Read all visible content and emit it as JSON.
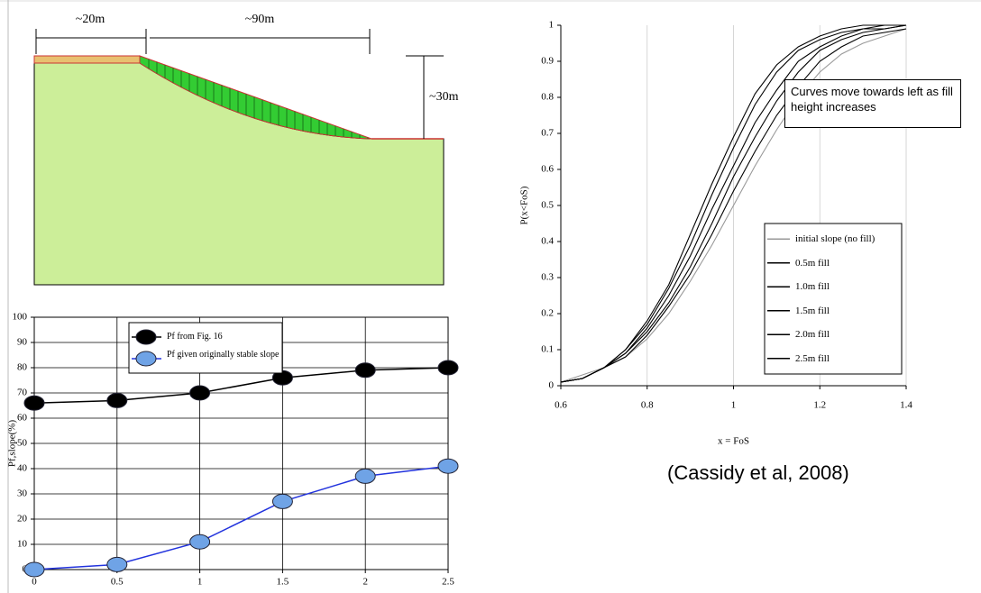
{
  "diagram": {
    "labels": [
      "~20m",
      "~90m",
      "~30m"
    ]
  },
  "citation": "(Cassidy et al, 2008)",
  "chart_data": [
    {
      "type": "line",
      "ylabel": "P(x<FoS)",
      "xlabel": "x = FoS",
      "annotation": "Curves move towards left as fill height increases",
      "x": [
        0.6,
        0.65,
        0.7,
        0.75,
        0.8,
        0.85,
        0.9,
        0.95,
        1,
        1.05,
        1.1,
        1.15,
        1.2,
        1.25,
        1.3,
        1.35,
        1.4
      ],
      "xlim": [
        0.6,
        1.4
      ],
      "xticks": [
        0.6,
        0.8,
        1,
        1.2,
        1.4
      ],
      "ylim": [
        0,
        1
      ],
      "yticks": [
        0,
        0.1,
        0.2,
        0.3,
        0.4,
        0.5,
        0.6,
        0.7,
        0.8,
        0.9,
        1
      ],
      "grid": {
        "x": true,
        "y": false
      },
      "markers": false,
      "legend": "lower right",
      "series": [
        {
          "name": "initial slope (no fill)",
          "color": "#999999",
          "values": [
            0.01,
            0.03,
            0.05,
            0.08,
            0.13,
            0.2,
            0.29,
            0.39,
            0.5,
            0.61,
            0.71,
            0.8,
            0.87,
            0.92,
            0.95,
            0.97,
            0.99
          ]
        },
        {
          "name": "0.5m fill",
          "color": "#000000",
          "values": [
            0.01,
            0.02,
            0.05,
            0.08,
            0.14,
            0.22,
            0.31,
            0.42,
            0.54,
            0.65,
            0.75,
            0.83,
            0.9,
            0.94,
            0.97,
            0.98,
            0.99
          ]
        },
        {
          "name": "1.0m fill",
          "color": "#000000",
          "values": [
            0.01,
            0.02,
            0.05,
            0.09,
            0.15,
            0.23,
            0.33,
            0.45,
            0.58,
            0.69,
            0.79,
            0.87,
            0.93,
            0.96,
            0.98,
            0.99,
            1
          ]
        },
        {
          "name": "1.5m fill",
          "color": "#000000",
          "values": [
            0.01,
            0.02,
            0.05,
            0.09,
            0.16,
            0.25,
            0.36,
            0.49,
            0.61,
            0.73,
            0.82,
            0.9,
            0.94,
            0.97,
            0.99,
            0.99,
            1
          ]
        },
        {
          "name": "2.0m fill",
          "color": "#000000",
          "values": [
            0.01,
            0.02,
            0.05,
            0.1,
            0.17,
            0.27,
            0.39,
            0.53,
            0.66,
            0.78,
            0.87,
            0.93,
            0.96,
            0.98,
            0.99,
            1,
            1
          ]
        },
        {
          "name": "2.5m fill",
          "color": "#000000",
          "values": [
            0.01,
            0.02,
            0.05,
            0.1,
            0.18,
            0.28,
            0.42,
            0.56,
            0.69,
            0.81,
            0.89,
            0.94,
            0.97,
            0.99,
            1,
            1,
            1
          ]
        }
      ]
    },
    {
      "type": "line",
      "ylabel": "Pf,slope(%)",
      "x": [
        0,
        0.5,
        1,
        1.5,
        2,
        2.5
      ],
      "xlim": [
        0,
        2.5
      ],
      "xticks": [
        0,
        0.5,
        1,
        1.5,
        2,
        2.5
      ],
      "ylim": [
        0,
        100
      ],
      "yticks": [
        0,
        10,
        20,
        30,
        40,
        50,
        60,
        70,
        80,
        90,
        100
      ],
      "grid": {
        "x": true,
        "y": true
      },
      "markers": true,
      "legend": "upper left",
      "series": [
        {
          "name": "Pf from Fig. 16",
          "color": "#000000",
          "marker_color": "#000000",
          "values": [
            66,
            67,
            70,
            76,
            79,
            80
          ]
        },
        {
          "name": "Pf given originally stable slope",
          "color": "#2233dd",
          "marker_color": "#6fa3e6",
          "values": [
            0,
            2,
            11,
            27,
            37,
            41
          ]
        }
      ]
    }
  ]
}
